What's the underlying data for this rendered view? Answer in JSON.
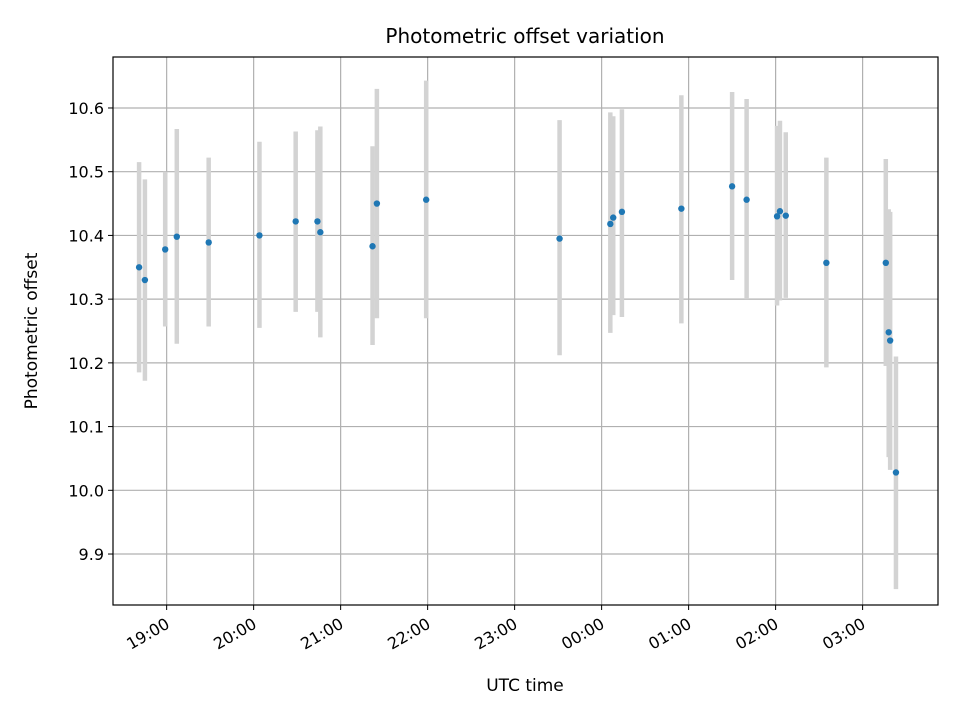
{
  "chart_data": {
    "type": "scatter",
    "title": "Photometric offset variation",
    "xlabel": "UTC time",
    "ylabel": "Photometric offset",
    "grid": true,
    "xlim": [
      "18:23",
      "03:52"
    ],
    "ylim": [
      9.82,
      10.68
    ],
    "x_ticks": [
      "19:00",
      "20:00",
      "21:00",
      "22:00",
      "23:00",
      "00:00",
      "01:00",
      "02:00",
      "03:00"
    ],
    "y_ticks": [
      "9.9",
      "10.0",
      "10.1",
      "10.2",
      "10.3",
      "10.4",
      "10.5",
      "10.6"
    ],
    "colors": {
      "points": "#1f77b4",
      "errorbars": "#d3d3d3",
      "grid": "#b0b0b0"
    },
    "series": [
      {
        "x": [
          "18:41",
          "18:45",
          "18:59",
          "19:07",
          "19:29",
          "20:04",
          "20:29",
          "20:44",
          "20:46",
          "21:22",
          "21:25",
          "21:59",
          "23:31",
          "00:06",
          "00:08",
          "00:14",
          "00:55",
          "01:30",
          "01:40",
          "02:01",
          "02:03",
          "02:07",
          "02:35",
          "03:16",
          "03:18",
          "03:19",
          "03:23"
        ],
        "y": [
          10.35,
          10.33,
          10.378,
          10.398,
          10.389,
          10.4,
          10.422,
          10.422,
          10.405,
          10.383,
          10.45,
          10.456,
          10.395,
          10.418,
          10.428,
          10.437,
          10.442,
          10.477,
          10.456,
          10.43,
          10.438,
          10.431,
          10.357,
          10.357,
          10.248,
          10.235,
          10.028
        ],
        "yerr_low": [
          10.185,
          10.172,
          10.257,
          10.23,
          10.257,
          10.255,
          10.28,
          10.28,
          10.24,
          10.228,
          10.27,
          10.27,
          10.212,
          10.247,
          10.275,
          10.272,
          10.262,
          10.33,
          10.3,
          10.29,
          10.298,
          10.302,
          10.193,
          10.195,
          10.052,
          10.032,
          9.845
        ],
        "yerr_high": [
          10.515,
          10.488,
          10.5,
          10.567,
          10.522,
          10.547,
          10.563,
          10.565,
          10.571,
          10.54,
          10.63,
          10.643,
          10.581,
          10.593,
          10.587,
          10.598,
          10.62,
          10.625,
          10.614,
          10.572,
          10.58,
          10.562,
          10.522,
          10.52,
          10.441,
          10.437,
          10.21
        ]
      }
    ]
  }
}
